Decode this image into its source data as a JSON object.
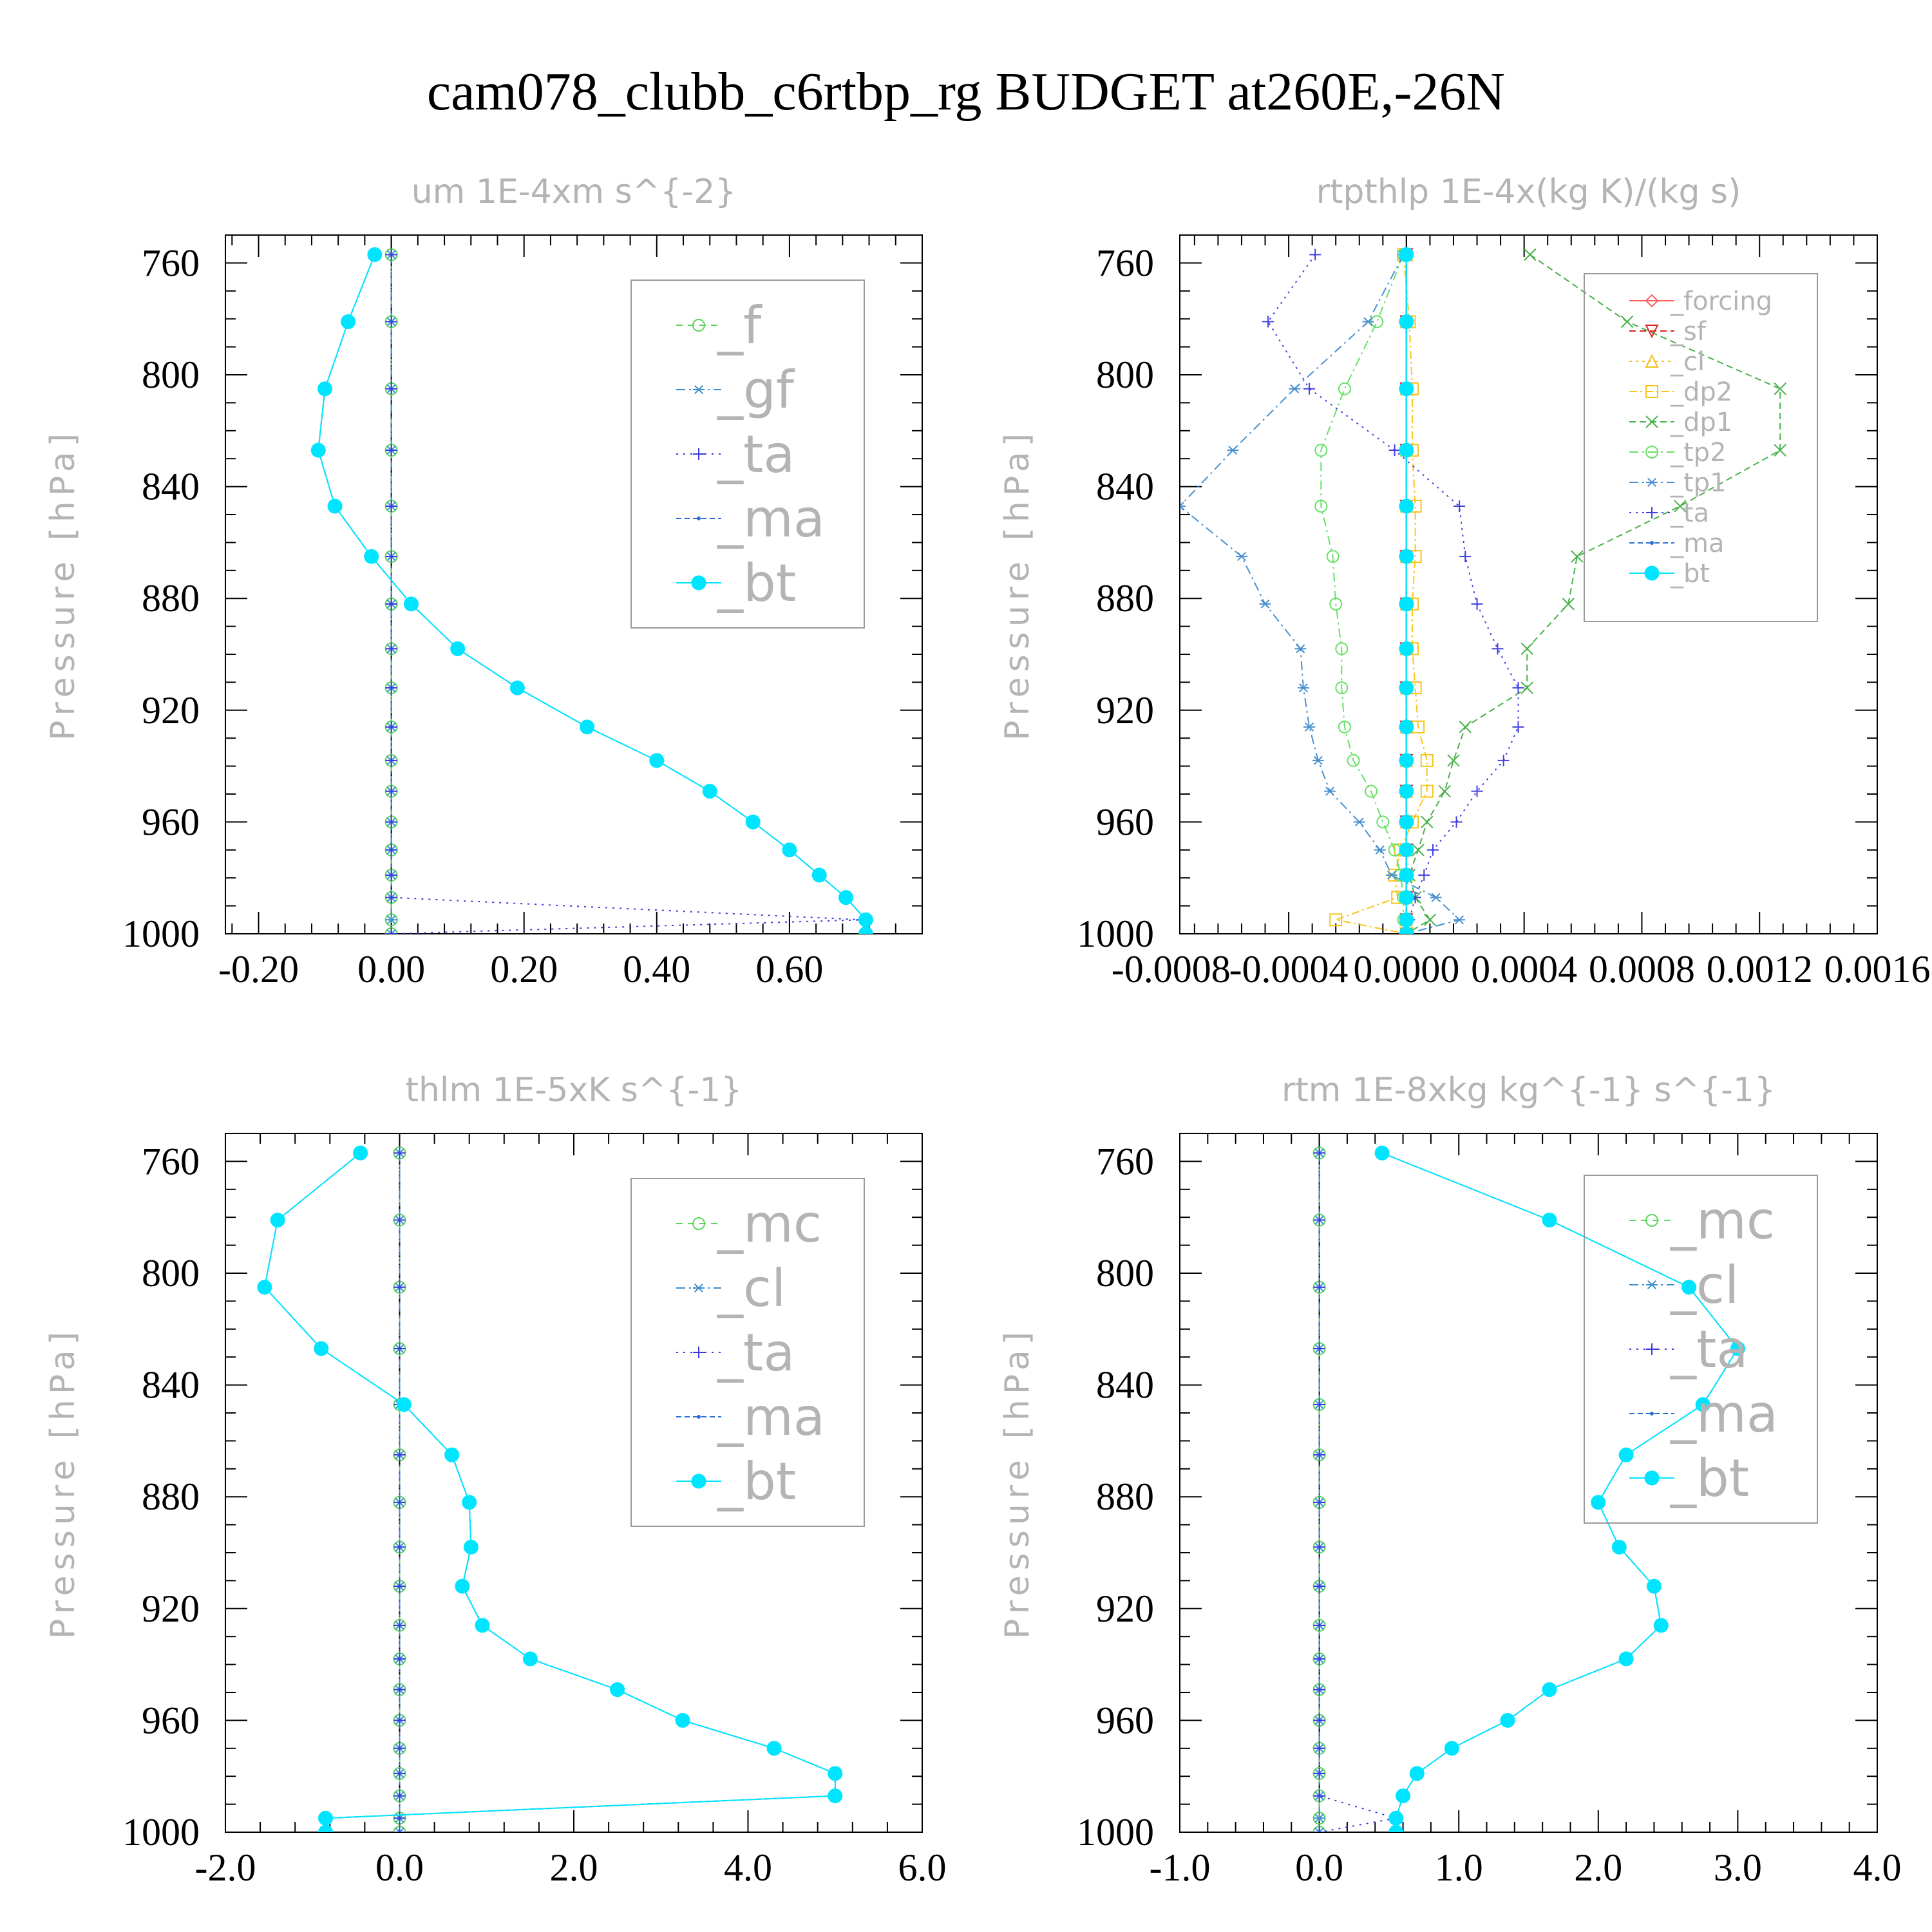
{
  "title": "cam078_clubb_c6rtbp_rg  BUDGET at260E,-26N",
  "colors": {
    "frame": "#000000",
    "faint_text": "#b4b4b4",
    "legend_border": "#9a9a9a"
  },
  "chart_data": [
    {
      "type": "line",
      "title": "um  1E-4xm s^{-2}",
      "ylabel": "Pressure [hPa]",
      "xlabel": "",
      "xlim": [
        -0.25,
        0.8
      ],
      "ylim": [
        1000,
        750
      ],
      "x_ticks": [
        -0.2,
        0.0,
        0.2,
        0.4,
        0.6
      ],
      "x_tick_labels": [
        "-0.20",
        "0.00",
        "0.20",
        "0.40",
        "0.60"
      ],
      "y_ticks": [
        760,
        800,
        840,
        880,
        920,
        960,
        1000
      ],
      "y_tick_labels": [
        "760",
        "800",
        "840",
        "880",
        "920",
        "960",
        "1000"
      ],
      "legend_position": "top-right",
      "legend_font": "large",
      "levels": [
        757,
        781,
        805,
        827,
        847,
        865,
        882,
        898,
        912,
        926,
        938,
        949,
        960,
        970,
        979,
        987,
        995,
        1000
      ],
      "series": [
        {
          "name": "_f",
          "color": "#5cd65c",
          "marker": "circle",
          "dash": "10,8",
          "values": [
            0,
            0,
            0,
            0,
            0,
            0,
            0,
            0,
            0,
            0,
            0,
            0,
            0,
            0,
            0,
            0,
            0,
            0
          ]
        },
        {
          "name": "_gf",
          "color": "#3a8fcc",
          "marker": "asterisk",
          "dash": "14,6,3,6",
          "values": [
            0,
            0,
            0,
            0,
            0,
            0,
            0,
            0,
            0,
            0,
            0,
            0,
            0,
            0,
            0,
            0,
            0,
            0
          ]
        },
        {
          "name": "_ta",
          "color": "#3a3ae0",
          "marker": "plus",
          "dash": "3,8",
          "values": [
            0,
            0,
            0,
            0,
            0,
            0,
            0,
            0,
            0,
            0,
            0,
            0,
            0,
            0,
            0,
            0,
            0.71,
            0
          ]
        },
        {
          "name": "_ma",
          "color": "#2a6fd6",
          "marker": "dot",
          "dash": "8,5",
          "values": [
            -0.025,
            -0.065,
            -0.1,
            -0.11,
            -0.085,
            -0.03,
            0.03,
            0.1,
            0.19,
            0.295,
            0.4,
            0.48,
            0.545,
            0.6,
            0.645,
            0.685,
            0.715,
            0.715
          ]
        },
        {
          "name": "_bt",
          "color": "#00e5ff",
          "marker": "filled",
          "dash": "",
          "values": [
            -0.025,
            -0.065,
            -0.1,
            -0.11,
            -0.085,
            -0.03,
            0.03,
            0.1,
            0.19,
            0.295,
            0.4,
            0.48,
            0.545,
            0.6,
            0.645,
            0.685,
            0.715,
            0.715
          ]
        }
      ]
    },
    {
      "type": "line",
      "title": "rtpthlp   1E-4x(kg K)/(kg s)",
      "ylabel": "Pressure [hPa]",
      "xlabel": "",
      "xlim": [
        -0.00077,
        0.0016
      ],
      "ylim": [
        1000,
        750
      ],
      "x_ticks": [
        -0.0008,
        -0.0004,
        0.0,
        0.0004,
        0.0008,
        0.0012,
        0.0016
      ],
      "x_tick_labels": [
        "-0.0008",
        "-0.0004",
        "0.0000",
        "0.0004",
        "0.0008",
        "0.0012",
        "0.0016"
      ],
      "y_ticks": [
        760,
        800,
        840,
        880,
        920,
        960,
        1000
      ],
      "y_tick_labels": [
        "760",
        "800",
        "840",
        "880",
        "920",
        "960",
        "1000"
      ],
      "legend_position": "top-right",
      "legend_font": "small",
      "levels": [
        757,
        781,
        805,
        827,
        847,
        865,
        882,
        898,
        912,
        926,
        938,
        949,
        960,
        970,
        979,
        987,
        995,
        1000
      ],
      "series": [
        {
          "name": "_forcing",
          "color": "#ff6060",
          "marker": "diamond",
          "dash": "",
          "values": [
            0,
            0,
            0,
            0,
            0,
            0,
            0,
            0,
            0,
            0,
            0,
            0,
            0,
            0,
            0,
            0,
            0,
            0
          ]
        },
        {
          "name": "_sf",
          "color": "#e02020",
          "marker": "tri-down",
          "dash": "10,6",
          "values": [
            0,
            0,
            0,
            0,
            0,
            0,
            0,
            0,
            0,
            0,
            0,
            0,
            0,
            0,
            0,
            0,
            0,
            0
          ]
        },
        {
          "name": "_cl",
          "color": "#f0c020",
          "marker": "tri-up",
          "dash": "4,6",
          "values": [
            0,
            0,
            0,
            0,
            0,
            0,
            0,
            0,
            0,
            0,
            0,
            0,
            0,
            0,
            0,
            0,
            0,
            0
          ]
        },
        {
          "name": "_dp2",
          "color": "#f5c518",
          "marker": "square",
          "dash": "12,5,3,5",
          "values": [
            -1e-05,
            1e-05,
            2e-05,
            2e-05,
            3e-05,
            3e-05,
            2e-05,
            2e-05,
            3e-05,
            4e-05,
            7e-05,
            7e-05,
            2e-05,
            -2e-05,
            -4e-05,
            -3e-05,
            -0.00024,
            0
          ]
        },
        {
          "name": "_dp1",
          "color": "#48b048",
          "marker": "x",
          "dash": "10,6",
          "values": [
            0.00042,
            0.00075,
            0.00127,
            0.00127,
            0.00093,
            0.00058,
            0.00055,
            0.00041,
            0.00041,
            0.0002,
            0.00016,
            0.00013,
            7e-05,
            4e-05,
            1e-05,
            3e-05,
            8e-05,
            0
          ]
        },
        {
          "name": "_tp2",
          "color": "#66e066",
          "marker": "circle",
          "dash": "14,6,3,6",
          "values": [
            -1e-05,
            -0.0001,
            -0.00021,
            -0.00029,
            -0.00029,
            -0.00025,
            -0.00024,
            -0.00022,
            -0.00022,
            -0.00021,
            -0.00018,
            -0.00012,
            -8e-05,
            -4e-05,
            -2e-05,
            -1e-05,
            -1e-05,
            0
          ]
        },
        {
          "name": "_tp1",
          "color": "#4a90d0",
          "marker": "asterisk",
          "dash": "14,6,3,6",
          "values": [
            -1e-05,
            -0.00013,
            -0.00038,
            -0.00059,
            -0.00077,
            -0.00056,
            -0.00048,
            -0.00036,
            -0.00035,
            -0.00033,
            -0.0003,
            -0.00026,
            -0.00016,
            -9e-05,
            -5e-05,
            0.0001,
            0.00018,
            0
          ]
        },
        {
          "name": "_ta",
          "color": "#4040e0",
          "marker": "plus",
          "dash": "3,7",
          "values": [
            -0.00031,
            -0.00047,
            -0.00033,
            -4e-05,
            0.00018,
            0.0002,
            0.00024,
            0.00031,
            0.00038,
            0.00038,
            0.00033,
            0.00024,
            0.00017,
            9e-05,
            6e-05,
            3e-05,
            1e-05,
            0
          ]
        },
        {
          "name": "_ma",
          "color": "#2a6fd6",
          "marker": "dot",
          "dash": "8,5",
          "values": [
            0,
            0,
            0,
            0,
            0,
            0,
            0,
            0,
            0,
            0,
            0,
            0,
            0,
            0,
            0,
            0,
            0,
            0
          ]
        },
        {
          "name": "_bt",
          "color": "#00e5ff",
          "marker": "filled",
          "dash": "",
          "values": [
            0,
            0,
            0,
            0,
            0,
            0,
            0,
            0,
            0,
            0,
            0,
            0,
            0,
            0,
            0,
            0,
            0,
            0
          ]
        }
      ]
    },
    {
      "type": "line",
      "title": "thlm   1E-5xK s^{-1}",
      "ylabel": "Pressure [hPa]",
      "xlabel": "",
      "xlim": [
        -2.0,
        6.0
      ],
      "ylim": [
        1000,
        750
      ],
      "x_ticks": [
        -2.0,
        0.0,
        2.0,
        4.0,
        6.0
      ],
      "x_tick_labels": [
        "-2.0",
        "0.0",
        "2.0",
        "4.0",
        "6.0"
      ],
      "y_ticks": [
        760,
        800,
        840,
        880,
        920,
        960,
        1000
      ],
      "y_tick_labels": [
        "760",
        "800",
        "840",
        "880",
        "920",
        "960",
        "1000"
      ],
      "legend_position": "top-right",
      "legend_font": "large",
      "levels": [
        757,
        781,
        805,
        827,
        847,
        865,
        882,
        898,
        912,
        926,
        938,
        949,
        960,
        970,
        979,
        987,
        995,
        1000
      ],
      "series": [
        {
          "name": "_mc",
          "color": "#5cd65c",
          "marker": "circle",
          "dash": "10,8",
          "values": [
            0,
            0,
            0,
            0,
            0,
            0,
            0,
            0,
            0,
            0,
            0,
            0,
            0,
            0,
            0,
            0,
            0,
            0
          ]
        },
        {
          "name": "_cl",
          "color": "#3a8fcc",
          "marker": "asterisk",
          "dash": "14,6,3,6",
          "values": [
            0,
            0,
            0,
            0,
            0,
            0,
            0,
            0,
            0,
            0,
            0,
            0,
            0,
            0,
            0,
            0,
            0,
            0
          ]
        },
        {
          "name": "_ta",
          "color": "#3a3ae0",
          "marker": "plus",
          "dash": "3,8",
          "values": [
            0,
            0,
            0,
            0,
            0,
            0,
            0,
            0,
            0,
            0,
            0,
            0,
            0,
            0,
            0,
            0,
            0,
            0
          ]
        },
        {
          "name": "_ma",
          "color": "#2a6fd6",
          "marker": "dot",
          "dash": "8,5",
          "values": [
            -0.45,
            -1.4,
            -1.55,
            -0.9,
            0.05,
            0.6,
            0.8,
            0.82,
            0.72,
            0.95,
            1.5,
            2.5,
            3.25,
            4.3,
            5.0,
            5.0,
            -0.85,
            -0.85
          ]
        },
        {
          "name": "_bt",
          "color": "#00e5ff",
          "marker": "filled",
          "dash": "",
          "values": [
            -0.45,
            -1.4,
            -1.55,
            -0.9,
            0.05,
            0.6,
            0.8,
            0.82,
            0.72,
            0.95,
            1.5,
            2.5,
            3.25,
            4.3,
            5.0,
            5.0,
            -0.85,
            -0.85
          ]
        }
      ]
    },
    {
      "type": "line",
      "title": "rtm   1E-8xkg kg^{-1} s^{-1}",
      "ylabel": "Pressure [hPa]",
      "xlabel": "",
      "xlim": [
        -1.0,
        4.0
      ],
      "ylim": [
        1000,
        750
      ],
      "x_ticks": [
        -1.0,
        0.0,
        1.0,
        2.0,
        3.0,
        4.0
      ],
      "x_tick_labels": [
        "-1.0",
        "0.0",
        "1.0",
        "2.0",
        "3.0",
        "4.0"
      ],
      "y_ticks": [
        760,
        800,
        840,
        880,
        920,
        960,
        1000
      ],
      "y_tick_labels": [
        "760",
        "800",
        "840",
        "880",
        "920",
        "960",
        "1000"
      ],
      "legend_position": "top-right",
      "legend_font": "large",
      "levels": [
        757,
        781,
        805,
        827,
        847,
        865,
        882,
        898,
        912,
        926,
        938,
        949,
        960,
        970,
        979,
        987,
        995,
        1000
      ],
      "series": [
        {
          "name": "_mc",
          "color": "#5cd65c",
          "marker": "circle",
          "dash": "10,8",
          "values": [
            0,
            0,
            0,
            0,
            0,
            0,
            0,
            0,
            0,
            0,
            0,
            0,
            0,
            0,
            0,
            0,
            0,
            0
          ]
        },
        {
          "name": "_cl",
          "color": "#3a8fcc",
          "marker": "asterisk",
          "dash": "14,6,3,6",
          "values": [
            0,
            0,
            0,
            0,
            0,
            0,
            0,
            0,
            0,
            0,
            0,
            0,
            0,
            0,
            0,
            0,
            0,
            0
          ]
        },
        {
          "name": "_ta",
          "color": "#3a3ae0",
          "marker": "plus",
          "dash": "3,8",
          "values": [
            0,
            0,
            0,
            0,
            0,
            0,
            0,
            0,
            0,
            0,
            0,
            0,
            0,
            0,
            0,
            0,
            0.55,
            0
          ]
        },
        {
          "name": "_ma",
          "color": "#2a6fd6",
          "marker": "dot",
          "dash": "8,5",
          "values": [
            0.45,
            1.65,
            2.65,
            3.0,
            2.75,
            2.2,
            2.0,
            2.15,
            2.4,
            2.45,
            2.2,
            1.65,
            1.35,
            0.95,
            0.7,
            0.6,
            0.55,
            0.55
          ]
        },
        {
          "name": "_bt",
          "color": "#00e5ff",
          "marker": "filled",
          "dash": "",
          "values": [
            0.45,
            1.65,
            2.65,
            3.0,
            2.75,
            2.2,
            2.0,
            2.15,
            2.4,
            2.45,
            2.2,
            1.65,
            1.35,
            0.95,
            0.7,
            0.6,
            0.55,
            0.55
          ]
        }
      ]
    }
  ]
}
